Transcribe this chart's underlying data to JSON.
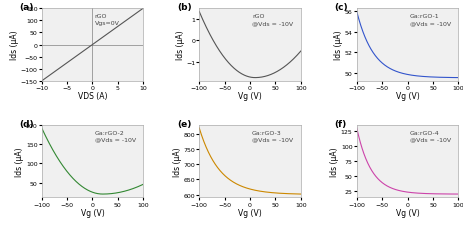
{
  "panels": [
    {
      "label": "(a)",
      "annotation": "rGO\nVgs=0V",
      "xlabel": "VDS (A)",
      "ylabel": "Ids (μA)",
      "color": "#555555",
      "type": "linear",
      "xrange": [
        -10,
        10
      ],
      "yrange": [
        -150,
        150
      ],
      "xticks": [
        -10,
        -5,
        0,
        5,
        10
      ],
      "yticks": [
        -150,
        -100,
        -50,
        0,
        50,
        100,
        150
      ],
      "hline": true,
      "vline": true
    },
    {
      "label": "(b)",
      "annotation": "rGO\n@Vds = -10V",
      "xlabel": "Vg (V)",
      "ylabel": "Ids (μA)",
      "color": "#555555",
      "type": "transfer_u",
      "xrange": [
        -100,
        100
      ],
      "yrange": null,
      "xticks": [
        -100,
        -50,
        0,
        50,
        100
      ],
      "yticks": null,
      "hline": false,
      "vline": false
    },
    {
      "label": "(c)",
      "annotation": "Ga:rGO-1\n@Vds = -10V",
      "xlabel": "Vg (V)",
      "ylabel": "Ids (μA)",
      "color": "#3355cc",
      "type": "transfer_exp_decrease",
      "xrange": [
        -100,
        100
      ],
      "yrange": null,
      "xticks": [
        -100,
        -50,
        0,
        50,
        100
      ],
      "yticks": null,
      "hline": false,
      "vline": false
    },
    {
      "label": "(d)",
      "annotation": "Ga:rGO-2\n@Vds = -10V",
      "xlabel": "Vg (V)",
      "ylabel": "Ids (μA)",
      "color": "#338833",
      "type": "transfer_u_asym",
      "xrange": [
        -100,
        100
      ],
      "yrange": null,
      "xticks": [
        -100,
        -50,
        0,
        50,
        100
      ],
      "yticks": null,
      "hline": false,
      "vline": false
    },
    {
      "label": "(e)",
      "annotation": "Ga:rGO-3\n@Vds = -10V",
      "xlabel": "Vg (V)",
      "ylabel": "Ids (μA)",
      "color": "#cc8800",
      "type": "transfer_exp_decrease2",
      "xrange": [
        -100,
        100
      ],
      "yrange": null,
      "xticks": [
        -100,
        -50,
        0,
        50,
        100
      ],
      "yticks": null,
      "hline": false,
      "vline": false
    },
    {
      "label": "(f)",
      "annotation": "Ga:rGO-4\n@Vds = -10V",
      "xlabel": "Vg (V)",
      "ylabel": "Ids (μA)",
      "color": "#cc44aa",
      "type": "transfer_exp_decrease3",
      "xrange": [
        -100,
        100
      ],
      "yrange": null,
      "xticks": [
        -100,
        -50,
        0,
        50,
        100
      ],
      "yticks": null,
      "hline": false,
      "vline": false
    }
  ],
  "fig_bg": "#ffffff",
  "axes_bg": "#f0f0f0",
  "label_fontsize": 5.5,
  "tick_fontsize": 4.5,
  "annot_fontsize": 4.5
}
